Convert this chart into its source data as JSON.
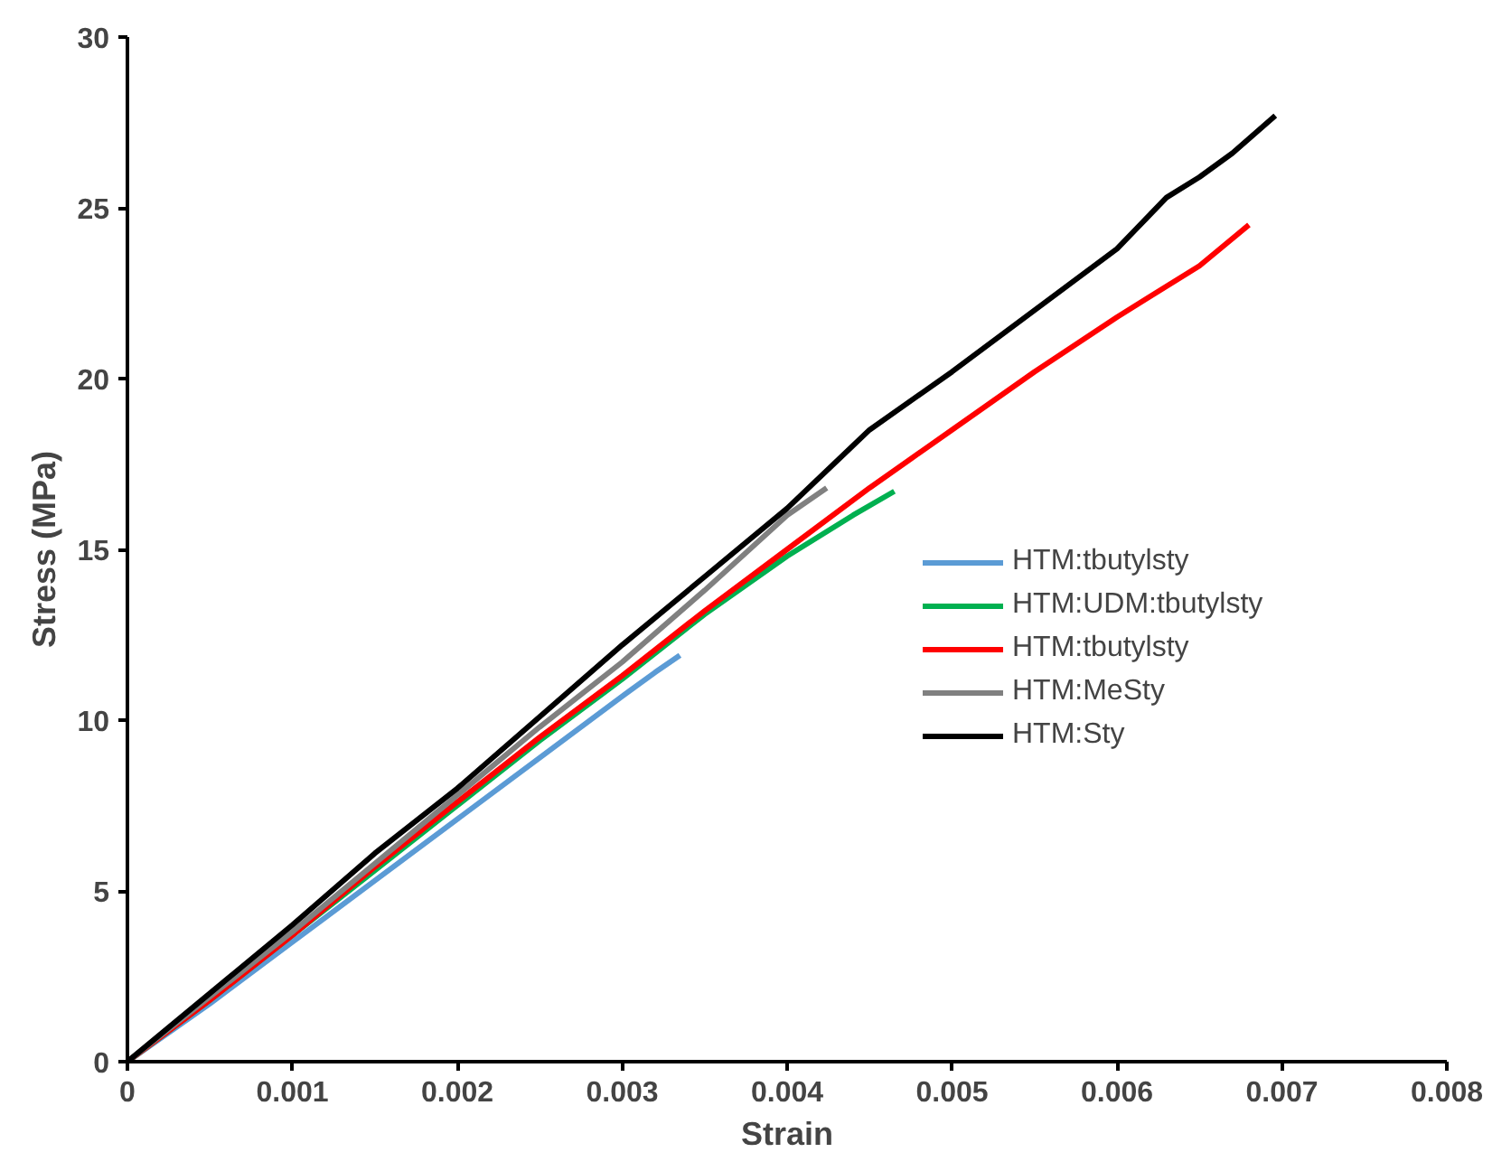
{
  "chart_data": {
    "type": "line",
    "xlabel": "Strain",
    "ylabel": "Stress (MPa)",
    "xlim": [
      0,
      0.008
    ],
    "ylim": [
      0,
      30
    ],
    "xticks": [
      0,
      0.001,
      0.002,
      0.003,
      0.004,
      0.005,
      0.006,
      0.007,
      0.008
    ],
    "yticks": [
      0,
      5,
      10,
      15,
      20,
      25,
      30
    ],
    "grid": false,
    "legend": "right",
    "marker": "none",
    "line_style": "solid",
    "series": [
      {
        "name": "HTM:tbutylsty",
        "color": "#5b9bd5",
        "x": [
          0,
          0.0005,
          0.001,
          0.0015,
          0.002,
          0.0025,
          0.003,
          0.0032,
          0.00335
        ],
        "values": [
          0,
          1.7,
          3.5,
          5.3,
          7.1,
          8.9,
          10.7,
          11.4,
          11.9
        ]
      },
      {
        "name": "HTM:UDM:tbutylsty",
        "color": "#00b050",
        "x": [
          0,
          0.0005,
          0.001,
          0.0015,
          0.002,
          0.0025,
          0.003,
          0.0035,
          0.004,
          0.0044,
          0.00465
        ],
        "values": [
          0,
          1.8,
          3.7,
          5.6,
          7.5,
          9.4,
          11.2,
          13.1,
          14.8,
          16.0,
          16.7
        ]
      },
      {
        "name": "HTM:tbutylsty",
        "color": "#ff0000",
        "x": [
          0,
          0.0005,
          0.001,
          0.0015,
          0.002,
          0.0025,
          0.003,
          0.0035,
          0.004,
          0.0045,
          0.005,
          0.0055,
          0.006,
          0.0065,
          0.0068
        ],
        "values": [
          0,
          1.8,
          3.7,
          5.7,
          7.6,
          9.5,
          11.3,
          13.2,
          15.0,
          16.8,
          18.5,
          20.2,
          21.8,
          23.3,
          24.5
        ]
      },
      {
        "name": "HTM:MeSty",
        "color": "#808080",
        "x": [
          0,
          0.0005,
          0.001,
          0.0015,
          0.002,
          0.0025,
          0.003,
          0.0035,
          0.004,
          0.00424
        ],
        "values": [
          0,
          1.9,
          3.8,
          5.8,
          7.8,
          9.8,
          11.7,
          13.8,
          16.0,
          16.8
        ]
      },
      {
        "name": "HTM:Sty",
        "color": "#000000",
        "x": [
          0,
          0.0005,
          0.001,
          0.0015,
          0.002,
          0.0025,
          0.003,
          0.0035,
          0.004,
          0.0045,
          0.005,
          0.0055,
          0.006,
          0.0063,
          0.0065,
          0.0067,
          0.00696
        ],
        "values": [
          0,
          2.0,
          4.0,
          6.1,
          8.0,
          10.1,
          12.2,
          14.2,
          16.2,
          18.5,
          20.2,
          22.0,
          23.8,
          25.3,
          25.9,
          26.6,
          27.7
        ]
      }
    ]
  }
}
